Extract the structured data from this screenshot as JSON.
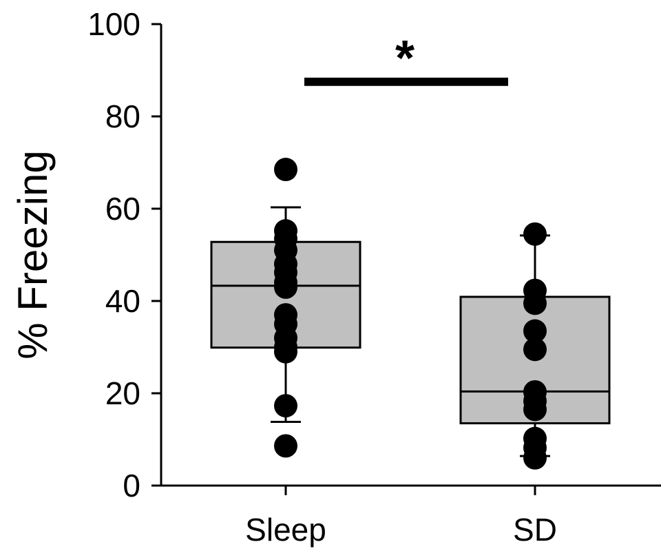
{
  "chart_data": {
    "type": "box",
    "title": "",
    "xlabel": "",
    "ylabel": "% Freezing",
    "ylim": [
      0,
      100
    ],
    "yticks": [
      0,
      20,
      40,
      60,
      80,
      100
    ],
    "ytick_labels": [
      "0",
      "20",
      "40",
      "60",
      "80",
      "100"
    ],
    "categories": [
      "Sleep",
      "SD"
    ],
    "box_color": "#c0c0c0",
    "point_color": "#000000",
    "groups": [
      {
        "category": "Sleep",
        "whisker_low": 13.8,
        "q1": 29.9,
        "median": 43.3,
        "q3": 52.8,
        "whisker_high": 60.3,
        "points": [
          68.5,
          55.2,
          53.5,
          51.0,
          48.0,
          46.2,
          44.0,
          43.0,
          37.0,
          35.0,
          32.0,
          30.0,
          29.0,
          17.3,
          8.6
        ]
      },
      {
        "category": "SD",
        "whisker_low": 6.4,
        "q1": 13.5,
        "median": 20.4,
        "q3": 40.9,
        "whisker_high": 54.2,
        "points": [
          54.5,
          42.3,
          39.5,
          33.5,
          29.5,
          20.3,
          18.3,
          16.5,
          10.2,
          8.2,
          6.0
        ]
      }
    ],
    "significance": {
      "label": "*",
      "between": [
        "Sleep",
        "SD"
      ],
      "y": 87.5
    }
  }
}
